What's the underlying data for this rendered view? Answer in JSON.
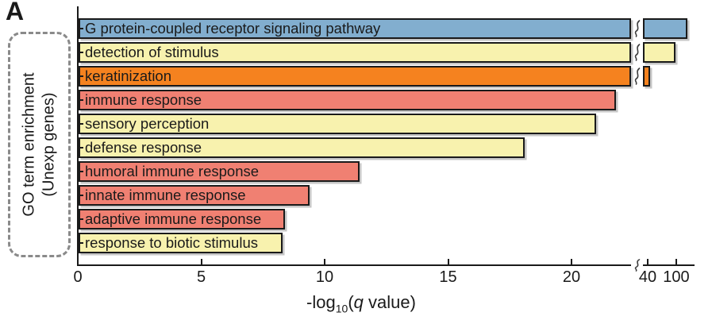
{
  "panel_label": "A",
  "y_group_label": {
    "line1": "GO term enrichment",
    "line2": "(Unexp genes)"
  },
  "axis": {
    "label_pre": "-log",
    "label_sub": "10",
    "label_open": "(",
    "label_q": "q",
    "label_post": " value)"
  },
  "palette": {
    "blue": "#82AECF",
    "yellow": "#F8F2AE",
    "orange": "#F5821F",
    "red": "#F08072",
    "ink": "#1A1A1A",
    "dashed_box": "#8A8A8A",
    "shadow": "#C6C6C6",
    "squiggle": "#3C3C3C"
  },
  "chart_data": {
    "type": "bar",
    "orientation": "horizontal",
    "title": "",
    "xlabel": "-log10(q value)",
    "ylabel": "GO term enrichment (Unexp genes)",
    "grid": false,
    "legend": false,
    "x_ticks": [
      0,
      5,
      10,
      15,
      20
    ],
    "x_axis_break": {
      "present": true,
      "break_after_value": 22.5,
      "post_break_ticks": [
        40,
        100
      ],
      "post_break_scale": "log"
    },
    "categories": [
      "G protein-coupled receptor signaling pathway",
      "detection of stimulus",
      "keratinization",
      "immune response",
      "sensory perception",
      "defense response",
      "humoral immune response",
      "innate immune response",
      "adaptive immune response",
      "response to biotic stimulus"
    ],
    "values": [
      140,
      95,
      42,
      21.8,
      21.0,
      18.1,
      11.4,
      9.4,
      8.4,
      8.3
    ],
    "bar_colors": [
      "blue",
      "yellow",
      "orange",
      "red",
      "yellow",
      "yellow",
      "red",
      "red",
      "red",
      "yellow"
    ]
  }
}
